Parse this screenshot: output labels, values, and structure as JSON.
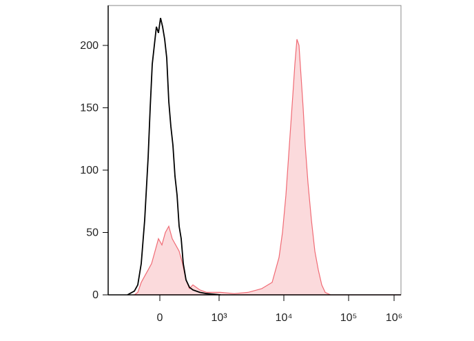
{
  "chart_data": {
    "type": "line",
    "xlim": [
      -75,
      350
    ],
    "xticks": [
      0,
      {
        "value": 86,
        "label": "10³"
      },
      {
        "value": 180,
        "label": "10⁴"
      },
      {
        "value": 274,
        "label": "10⁵"
      },
      {
        "value": 340,
        "label": "10⁶"
      }
    ],
    "ylim": [
      0,
      232
    ],
    "yticks": [
      0,
      50,
      100,
      150,
      200
    ],
    "series": [
      {
        "color": "#000000",
        "filled": false,
        "x": [
          -47,
          -37,
          -32,
          -27,
          -22,
          -17,
          -14,
          -11,
          -8,
          -5,
          -2,
          1,
          4,
          7,
          10,
          13,
          16,
          19,
          22,
          25,
          28,
          31,
          34,
          38,
          43,
          48,
          58,
          68,
          88
        ],
        "values": [
          0,
          3,
          8,
          25,
          60,
          110,
          150,
          185,
          200,
          215,
          210,
          222,
          215,
          205,
          190,
          155,
          135,
          120,
          95,
          80,
          55,
          45,
          25,
          12,
          6,
          4,
          2,
          1,
          0
        ]
      },
      {
        "color": "#f06a74",
        "filled": true,
        "x": [
          -37,
          -32,
          -27,
          -22,
          -17,
          -12,
          -7,
          -2,
          3,
          8,
          13,
          18,
          23,
          28,
          33,
          38,
          43,
          48,
          58,
          68,
          88,
          108,
          128,
          148,
          163,
          173,
          178,
          183,
          188,
          193,
          196,
          199,
          202,
          205,
          208,
          211,
          215,
          220,
          225,
          230,
          235,
          240,
          248,
          350
        ],
        "values": [
          0,
          2,
          10,
          15,
          20,
          25,
          35,
          45,
          40,
          50,
          55,
          45,
          40,
          35,
          25,
          12,
          5,
          8,
          4,
          2,
          2,
          1,
          2,
          5,
          10,
          30,
          50,
          80,
          120,
          160,
          185,
          205,
          200,
          175,
          150,
          120,
          90,
          60,
          35,
          20,
          8,
          2,
          0,
          0
        ]
      }
    ]
  }
}
